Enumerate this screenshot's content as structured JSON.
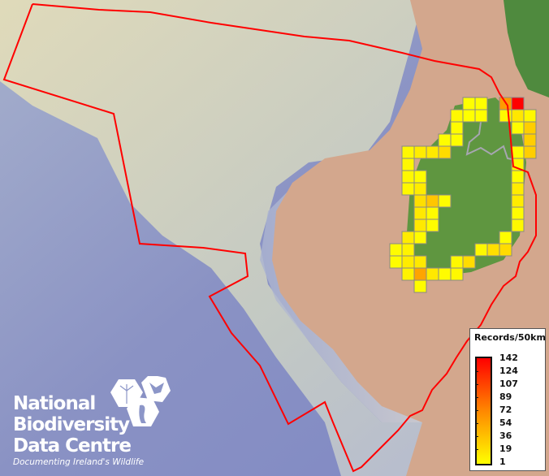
{
  "legend": {
    "title": "Records/50km",
    "ticks": [
      "142",
      "124",
      "107",
      "89",
      "72",
      "54",
      "36",
      "19",
      "1"
    ],
    "color_low": "#ffff00",
    "color_mid": "#ff8800",
    "color_high": "#ff0000"
  },
  "logo": {
    "line1": "National",
    "line2": "Biodiversity",
    "line3": "Data Centre",
    "tagline": "Documenting Ireland's Wildlife"
  },
  "colors": {
    "boundary": "#ff0000",
    "cell_border": "#888888",
    "sea": "#8c96c8",
    "land": "#d2a88e",
    "vegetation": "#5e9440"
  },
  "grid_cells": [
    {
      "row": 0,
      "col": 6,
      "records": 1
    },
    {
      "row": 0,
      "col": 7,
      "records": 1
    },
    {
      "row": 0,
      "col": 9,
      "records": 60
    },
    {
      "row": 0,
      "col": 10,
      "records": 142
    },
    {
      "row": 1,
      "col": 5,
      "records": 5
    },
    {
      "row": 1,
      "col": 6,
      "records": 1
    },
    {
      "row": 1,
      "col": 7,
      "records": 1
    },
    {
      "row": 1,
      "col": 9,
      "records": 5
    },
    {
      "row": 1,
      "col": 10,
      "records": 15
    },
    {
      "row": 1,
      "col": 11,
      "records": 5
    },
    {
      "row": 2,
      "col": 5,
      "records": 3
    },
    {
      "row": 2,
      "col": 10,
      "records": 3
    },
    {
      "row": 2,
      "col": 11,
      "records": 30
    },
    {
      "row": 3,
      "col": 4,
      "records": 2
    },
    {
      "row": 3,
      "col": 5,
      "records": 2
    },
    {
      "row": 3,
      "col": 11,
      "records": 30
    },
    {
      "row": 4,
      "col": 1,
      "records": 5
    },
    {
      "row": 4,
      "col": 2,
      "records": 12
    },
    {
      "row": 4,
      "col": 3,
      "records": 14
    },
    {
      "row": 4,
      "col": 4,
      "records": 22
    },
    {
      "row": 4,
      "col": 10,
      "records": 2
    },
    {
      "row": 4,
      "col": 11,
      "records": 30
    },
    {
      "row": 5,
      "col": 1,
      "records": 5
    },
    {
      "row": 5,
      "col": 10,
      "records": 5
    },
    {
      "row": 6,
      "col": 1,
      "records": 5
    },
    {
      "row": 6,
      "col": 2,
      "records": 2
    },
    {
      "row": 6,
      "col": 10,
      "records": 2
    },
    {
      "row": 7,
      "col": 1,
      "records": 5
    },
    {
      "row": 7,
      "col": 2,
      "records": 12
    },
    {
      "row": 7,
      "col": 10,
      "records": 12
    },
    {
      "row": 8,
      "col": 2,
      "records": 20
    },
    {
      "row": 8,
      "col": 3,
      "records": 35
    },
    {
      "row": 8,
      "col": 4,
      "records": 2
    },
    {
      "row": 8,
      "col": 10,
      "records": 12
    },
    {
      "row": 9,
      "col": 2,
      "records": 14
    },
    {
      "row": 9,
      "col": 3,
      "records": 3
    },
    {
      "row": 9,
      "col": 10,
      "records": 3
    },
    {
      "row": 10,
      "col": 2,
      "records": 14
    },
    {
      "row": 10,
      "col": 3,
      "records": 2
    },
    {
      "row": 10,
      "col": 10,
      "records": 5
    },
    {
      "row": 11,
      "col": 1,
      "records": 12
    },
    {
      "row": 11,
      "col": 2,
      "records": 3
    },
    {
      "row": 11,
      "col": 9,
      "records": 2
    },
    {
      "row": 12,
      "col": 0,
      "records": 3
    },
    {
      "row": 12,
      "col": 1,
      "records": 8
    },
    {
      "row": 12,
      "col": 7,
      "records": 5
    },
    {
      "row": 12,
      "col": 8,
      "records": 20
    },
    {
      "row": 12,
      "col": 9,
      "records": 22
    },
    {
      "row": 13,
      "col": 0,
      "records": 3
    },
    {
      "row": 13,
      "col": 1,
      "records": 12
    },
    {
      "row": 13,
      "col": 2,
      "records": 14
    },
    {
      "row": 13,
      "col": 5,
      "records": 5
    },
    {
      "row": 13,
      "col": 6,
      "records": 22
    },
    {
      "row": 14,
      "col": 1,
      "records": 8
    },
    {
      "row": 14,
      "col": 2,
      "records": 55
    },
    {
      "row": 14,
      "col": 3,
      "records": 14
    },
    {
      "row": 14,
      "col": 4,
      "records": 3
    },
    {
      "row": 14,
      "col": 5,
      "records": 5
    },
    {
      "row": 15,
      "col": 2,
      "records": 2
    }
  ]
}
